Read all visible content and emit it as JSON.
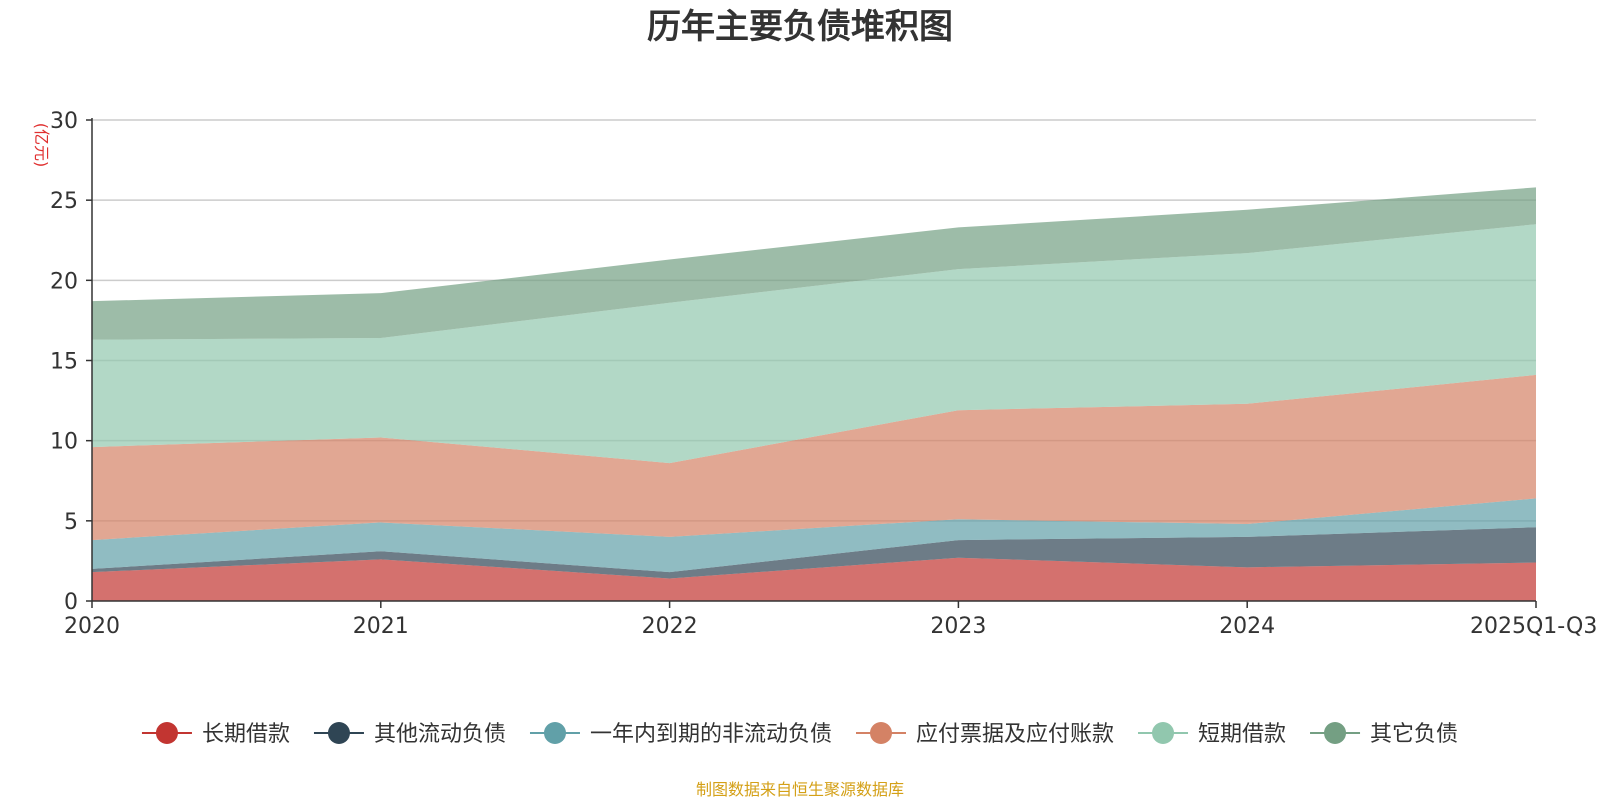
{
  "chart_data": {
    "type": "area",
    "stacked": true,
    "title": "历年主要负债堆积图",
    "ylabel": "(亿元)",
    "xlabel": "",
    "ylim": [
      0,
      30
    ],
    "yticks": [
      0,
      5,
      10,
      15,
      20,
      25,
      30
    ],
    "categories": [
      "2020",
      "2021",
      "2022",
      "2023",
      "2024",
      "2025Q1-Q3"
    ],
    "grid": true,
    "legend_position": "bottom",
    "series": [
      {
        "name": "长期借款",
        "color": "#c23531",
        "values": [
          1.8,
          2.6,
          1.4,
          2.7,
          2.1,
          2.4
        ]
      },
      {
        "name": "其他流动负债",
        "color": "#2f4554",
        "values": [
          0.2,
          0.5,
          0.4,
          1.1,
          1.9,
          2.2
        ]
      },
      {
        "name": "一年内到期的非流动负债",
        "color": "#61a0a8",
        "values": [
          1.8,
          1.8,
          2.2,
          1.3,
          0.8,
          1.8
        ]
      },
      {
        "name": "应付票据及应付账款",
        "color": "#d48265",
        "values": [
          5.8,
          5.3,
          4.6,
          6.8,
          7.5,
          7.7
        ]
      },
      {
        "name": "短期借款",
        "color": "#91c7ae",
        "values": [
          6.7,
          6.2,
          10.0,
          8.8,
          9.4,
          9.4
        ]
      },
      {
        "name": "其它负债",
        "color": "#749f83",
        "values": [
          2.4,
          2.8,
          2.7,
          2.6,
          2.7,
          2.3
        ]
      }
    ],
    "source": "制图数据来自恒生聚源数据库",
    "colors": {
      "axis": "#333333",
      "grid": "#cccccc",
      "unit": "#e03030",
      "source": "#d4a017",
      "text": "#333333"
    }
  }
}
